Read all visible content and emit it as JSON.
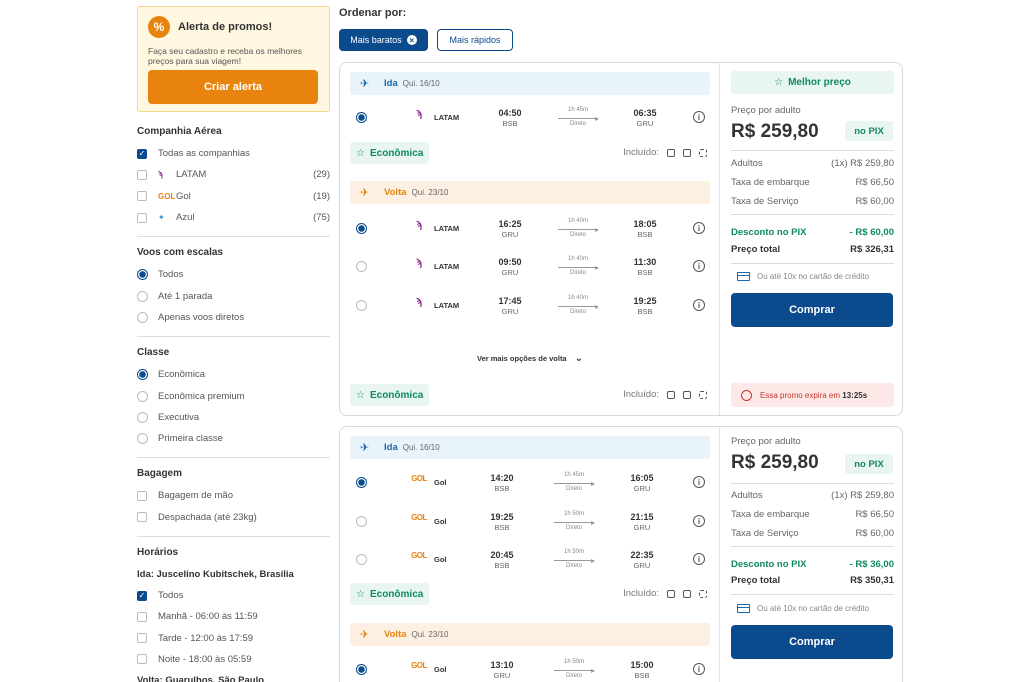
{
  "promo": {
    "title": "Alerta de promos!",
    "text": "Faça seu cadastro e receba os melhores preços para sua viagem!",
    "button": "Criar alerta"
  },
  "filters": {
    "airline": {
      "title": "Companhia Aérea",
      "options": [
        {
          "label": "Todas as companhias",
          "checked": true,
          "count": ""
        },
        {
          "label": "LATAM",
          "checked": false,
          "count": "(29)"
        },
        {
          "label": "Gol",
          "checked": false,
          "count": "(19)"
        },
        {
          "label": "Azul",
          "checked": false,
          "count": "(75)"
        }
      ]
    },
    "stops": {
      "title": "Voos com escalas",
      "options": [
        {
          "label": "Todos",
          "checked": true
        },
        {
          "label": "Até 1 parada",
          "checked": false
        },
        {
          "label": "Apenas voos diretos",
          "checked": false
        }
      ]
    },
    "cabin": {
      "title": "Classe",
      "options": [
        {
          "label": "Econômica",
          "checked": true
        },
        {
          "label": "Econômica premium",
          "checked": false
        },
        {
          "label": "Executiva",
          "checked": false
        },
        {
          "label": "Primeira classe",
          "checked": false
        }
      ]
    },
    "baggage": {
      "title": "Bagagem",
      "options": [
        {
          "label": "Bagagem de mão",
          "checked": false
        },
        {
          "label": "Despachada (até 23kg)",
          "checked": false
        }
      ]
    },
    "times": {
      "title": "Horários",
      "ida_label": "Ida: Juscelino Kubitschek, Brasília",
      "options": [
        {
          "label": "Todos",
          "checked": true
        },
        {
          "label": "Manhã - 06:00 às 11:59",
          "checked": false
        },
        {
          "label": "Tarde - 12:00 às 17:59",
          "checked": false
        },
        {
          "label": "Noite - 18:00 às 05:59",
          "checked": false
        }
      ],
      "volta_label": "Volta: Guarulhos, São Paulo"
    }
  },
  "sort": {
    "label": "Ordenar por:",
    "cheapest": "Mais baratos",
    "fastest": "Mais rápidos"
  },
  "common": {
    "ida": "Ida",
    "volta": "Volta",
    "economy": "Econômica",
    "included": "Incluído:",
    "more_options": "Ver mais opções de volta",
    "best_price": "Melhor preço",
    "price_per_adult": "Preço por adulto",
    "pix": "no PIX",
    "adults": "Adultos",
    "boarding_tax": "Taxa de embarque",
    "service_tax": "Taxa de Serviço",
    "pix_discount": "Desconto no PIX",
    "total": "Preço total",
    "card_info": "Ou até 10x no cartão de crédito",
    "buy": "Comprar",
    "expire_text": "Essa promo expira em",
    "expire_time": "13:25s",
    "direct": "Direto"
  },
  "card1": {
    "ida_date": "Qui. 16/10",
    "volta_date": "Qui. 23/10",
    "ida_flights": [
      {
        "airline": "LATAM",
        "dep": "04:50",
        "dep_ap": "BSB",
        "dur": "1h 45m",
        "arr": "06:35",
        "arr_ap": "GRU",
        "selected": true
      }
    ],
    "volta_flights": [
      {
        "airline": "LATAM",
        "dep": "16:25",
        "dep_ap": "GRU",
        "dur": "1h 40m",
        "arr": "18:05",
        "arr_ap": "BSB",
        "selected": true
      },
      {
        "airline": "LATAM",
        "dep": "09:50",
        "dep_ap": "GRU",
        "dur": "1h 40m",
        "arr": "11:30",
        "arr_ap": "BSB",
        "selected": false
      },
      {
        "airline": "LATAM",
        "dep": "17:45",
        "dep_ap": "GRU",
        "dur": "1h 40m",
        "arr": "19:25",
        "arr_ap": "BSB",
        "selected": false
      }
    ],
    "price": "R$ 259,80",
    "adults_qty": "(1x) R$ 259,80",
    "boarding_tax": "R$ 66,50",
    "service_tax": "R$ 60,00",
    "discount": "- R$ 60,00",
    "total": "R$ 326,31"
  },
  "card2": {
    "ida_date": "Qui. 16/10",
    "volta_date": "Qui. 23/10",
    "ida_flights": [
      {
        "airline": "Gol",
        "dep": "14:20",
        "dep_ap": "BSB",
        "dur": "1h 45m",
        "arr": "16:05",
        "arr_ap": "GRU",
        "selected": true
      },
      {
        "airline": "Gol",
        "dep": "19:25",
        "dep_ap": "BSB",
        "dur": "1h 50m",
        "arr": "21:15",
        "arr_ap": "GRU",
        "selected": false
      },
      {
        "airline": "Gol",
        "dep": "20:45",
        "dep_ap": "BSB",
        "dur": "1h 50m",
        "arr": "22:35",
        "arr_ap": "GRU",
        "selected": false
      }
    ],
    "volta_flights": [
      {
        "airline": "Gol",
        "dep": "13:10",
        "dep_ap": "GRU",
        "dur": "1h 50m",
        "arr": "15:00",
        "arr_ap": "BSB",
        "selected": true
      }
    ],
    "price": "R$ 259,80",
    "adults_qty": "(1x) R$ 259,80",
    "boarding_tax": "R$ 66,50",
    "service_tax": "R$ 60,00",
    "discount": "- R$ 36,00",
    "total": "R$ 350,31"
  },
  "colors": {
    "primary": "#0b4a8c",
    "orange": "#e8840d",
    "green": "#0f8a5f",
    "red": "#c0392b"
  }
}
